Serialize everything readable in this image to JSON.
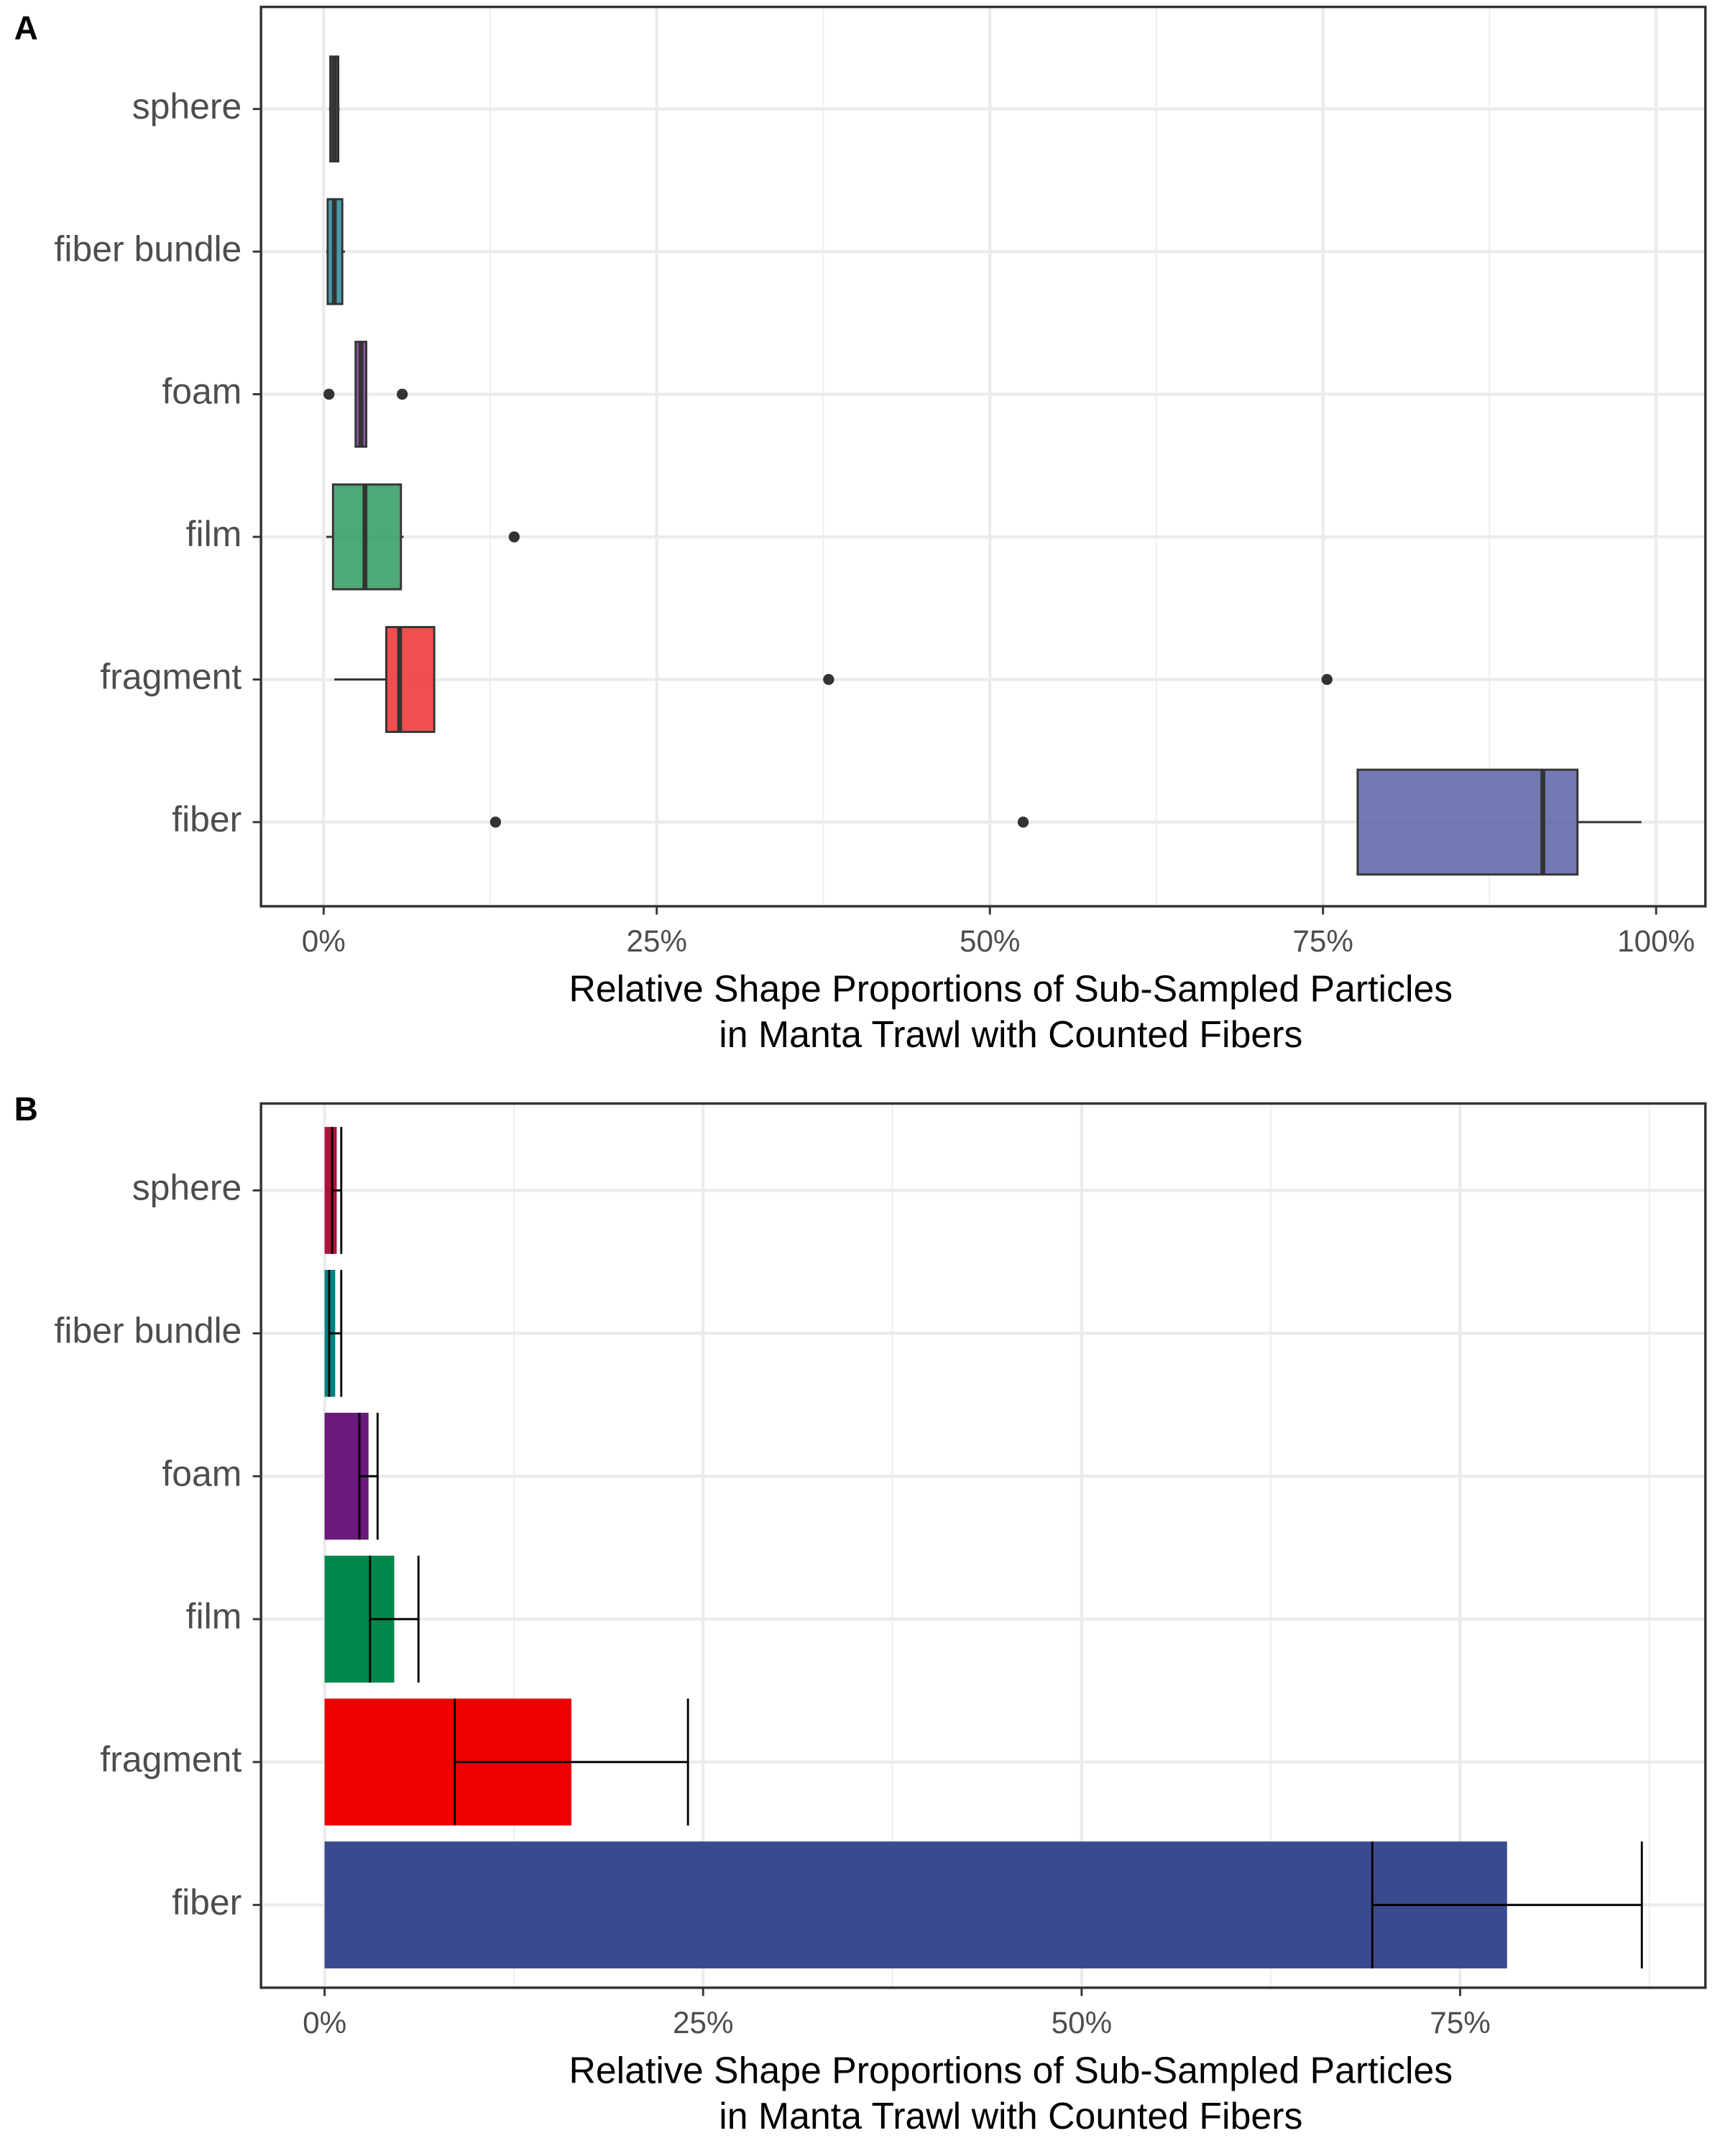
{
  "chart_data": [
    {
      "type": "boxplot",
      "panel_label": "A",
      "categories": [
        "sphere",
        "fiber bundle",
        "foam",
        "film",
        "fragment",
        "fiber"
      ],
      "colors": [
        "#333333",
        "#2a8a9a",
        "#7a3a9a",
        "#2e9a5e",
        "#ee3030",
        "#5a62a6"
      ],
      "boxes": [
        {
          "min": 0.4,
          "q1": 0.5,
          "median": 0.8,
          "q3": 1.1,
          "max": 1.2,
          "outliers": []
        },
        {
          "min": 0.2,
          "q1": 0.3,
          "median": 0.8,
          "q3": 1.4,
          "max": 1.6,
          "outliers": []
        },
        {
          "min": 2.4,
          "q1": 2.4,
          "median": 2.8,
          "q3": 3.2,
          "max": 3.2,
          "outliers": [
            0.4,
            5.9
          ]
        },
        {
          "min": 0.2,
          "q1": 0.7,
          "median": 3.1,
          "q3": 5.8,
          "max": 6.0,
          "outliers": [
            14.3
          ]
        },
        {
          "min": 0.8,
          "q1": 4.7,
          "median": 5.7,
          "q3": 8.3,
          "max": 8.3,
          "outliers": [
            37.9,
            75.3
          ]
        },
        {
          "min": 77.6,
          "q1": 77.6,
          "median": 91.5,
          "q3": 94.1,
          "max": 98.9,
          "outliers": [
            12.9,
            52.5
          ]
        }
      ],
      "xlim": [
        -4.7,
        103.7
      ],
      "xticks": [
        {
          "value": 0,
          "label": "0%"
        },
        {
          "value": 25,
          "label": "25%"
        },
        {
          "value": 50,
          "label": "50%"
        },
        {
          "value": 75,
          "label": "75%"
        },
        {
          "value": 100,
          "label": "100%"
        }
      ],
      "minor_xticks": [
        12.5,
        37.5,
        62.5,
        87.5
      ],
      "xlabel": [
        "Relative Shape Proportions of Sub-Sampled Particles",
        "in Manta Trawl with Counted Fibers"
      ],
      "grid": true
    },
    {
      "type": "bar",
      "panel_label": "B",
      "categories": [
        "sphere",
        "fiber bundle",
        "foam",
        "film",
        "fragment",
        "fiber"
      ],
      "colors": [
        "#b0103a",
        "#008080",
        "#6a1a7a",
        "#00884a",
        "#ee0000",
        "#3a4a8e"
      ],
      "values": [
        0.8,
        0.7,
        2.9,
        4.6,
        16.3,
        78.1
      ],
      "errors": [
        0.3,
        0.4,
        0.6,
        1.6,
        7.7,
        8.9
      ],
      "xlim": [
        -4.2,
        91.2
      ],
      "xticks": [
        {
          "value": 0,
          "label": "0%"
        },
        {
          "value": 25,
          "label": "25%"
        },
        {
          "value": 50,
          "label": "50%"
        },
        {
          "value": 75,
          "label": "75%"
        }
      ],
      "minor_xticks": [
        12.5,
        37.5,
        62.5,
        87.5
      ],
      "xlabel": [
        "Relative Shape Proportions of Sub-Sampled Particles",
        "in Manta Trawl with Counted Fibers"
      ],
      "grid": true
    }
  ]
}
